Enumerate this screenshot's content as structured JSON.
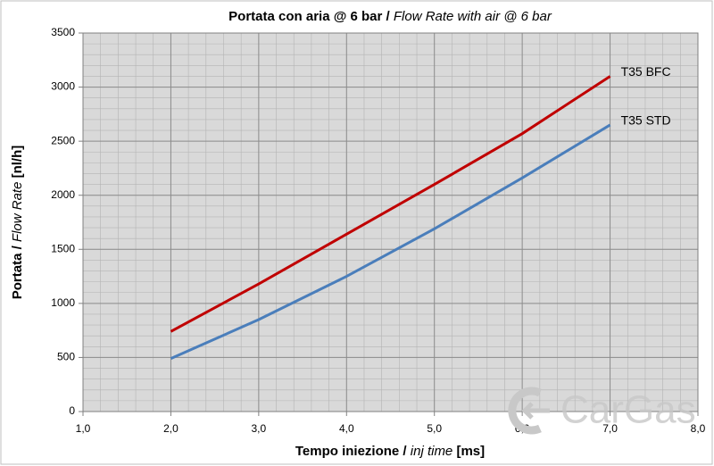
{
  "chart_data": {
    "type": "line",
    "title": [
      "Portata con aria @ 6 bar / ",
      "Flow Rate with air @ 6 bar"
    ],
    "x_label": [
      "Tempo iniezione / ",
      "inj time",
      " [ms]"
    ],
    "y_label": [
      "Portata / ",
      "Flow Rate",
      " [nl/h]"
    ],
    "x": [
      2,
      3,
      4,
      5,
      6,
      7
    ],
    "series": [
      {
        "name": "T35 BFC",
        "color": "#c00000",
        "values": [
          740,
          1180,
          1640,
          2100,
          2570,
          3100
        ]
      },
      {
        "name": "T35 STD",
        "color": "#4a7ebb",
        "values": [
          490,
          850,
          1250,
          1690,
          2160,
          2650
        ]
      }
    ],
    "xlim": [
      1,
      8
    ],
    "xticks": [
      {
        "value": 1,
        "label": "1,0"
      },
      {
        "value": 2,
        "label": "2,0"
      },
      {
        "value": 3,
        "label": "3,0"
      },
      {
        "value": 4,
        "label": "4,0"
      },
      {
        "value": 5,
        "label": "5,0"
      },
      {
        "value": 6,
        "label": "6,0"
      },
      {
        "value": 7,
        "label": "7,0"
      },
      {
        "value": 8,
        "label": "8,0"
      }
    ],
    "ylim": [
      0,
      3500
    ],
    "yticks": [
      0,
      500,
      1000,
      1500,
      2000,
      2500,
      3000,
      3500
    ],
    "grid": true,
    "minor_grid": {
      "x_step": 0.2,
      "y_step": 100
    },
    "watermark": "CarGas"
  }
}
